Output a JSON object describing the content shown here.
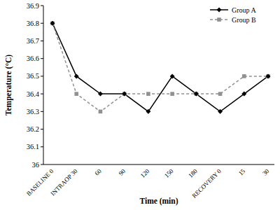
{
  "chart_data": {
    "type": "line",
    "x_label": "Time (min)",
    "y_label": "Temperature (°C)",
    "categories": [
      "BASELINE 0",
      "INTRAOP 30",
      "60",
      "90",
      "120",
      "150",
      "180",
      "RECOVERY 0",
      "15",
      "30"
    ],
    "series": [
      {
        "name": "Group A",
        "color": "#000000",
        "marker": "diamond",
        "line_style": "solid",
        "values": [
          36.8,
          36.5,
          36.4,
          36.4,
          36.3,
          36.5,
          36.4,
          36.3,
          36.4,
          36.5
        ]
      },
      {
        "name": "Group B",
        "color": "#909090",
        "marker": "square",
        "line_style": "dashed",
        "values": [
          36.8,
          36.4,
          36.3,
          36.4,
          36.4,
          36.4,
          36.4,
          36.4,
          36.5,
          36.5
        ]
      }
    ],
    "ylim": [
      36,
      36.9
    ],
    "yticks": [
      36,
      36.1,
      36.2,
      36.3,
      36.4,
      36.5,
      36.6,
      36.7,
      36.8,
      36.9
    ],
    "grid": false,
    "legend": "top-right"
  }
}
